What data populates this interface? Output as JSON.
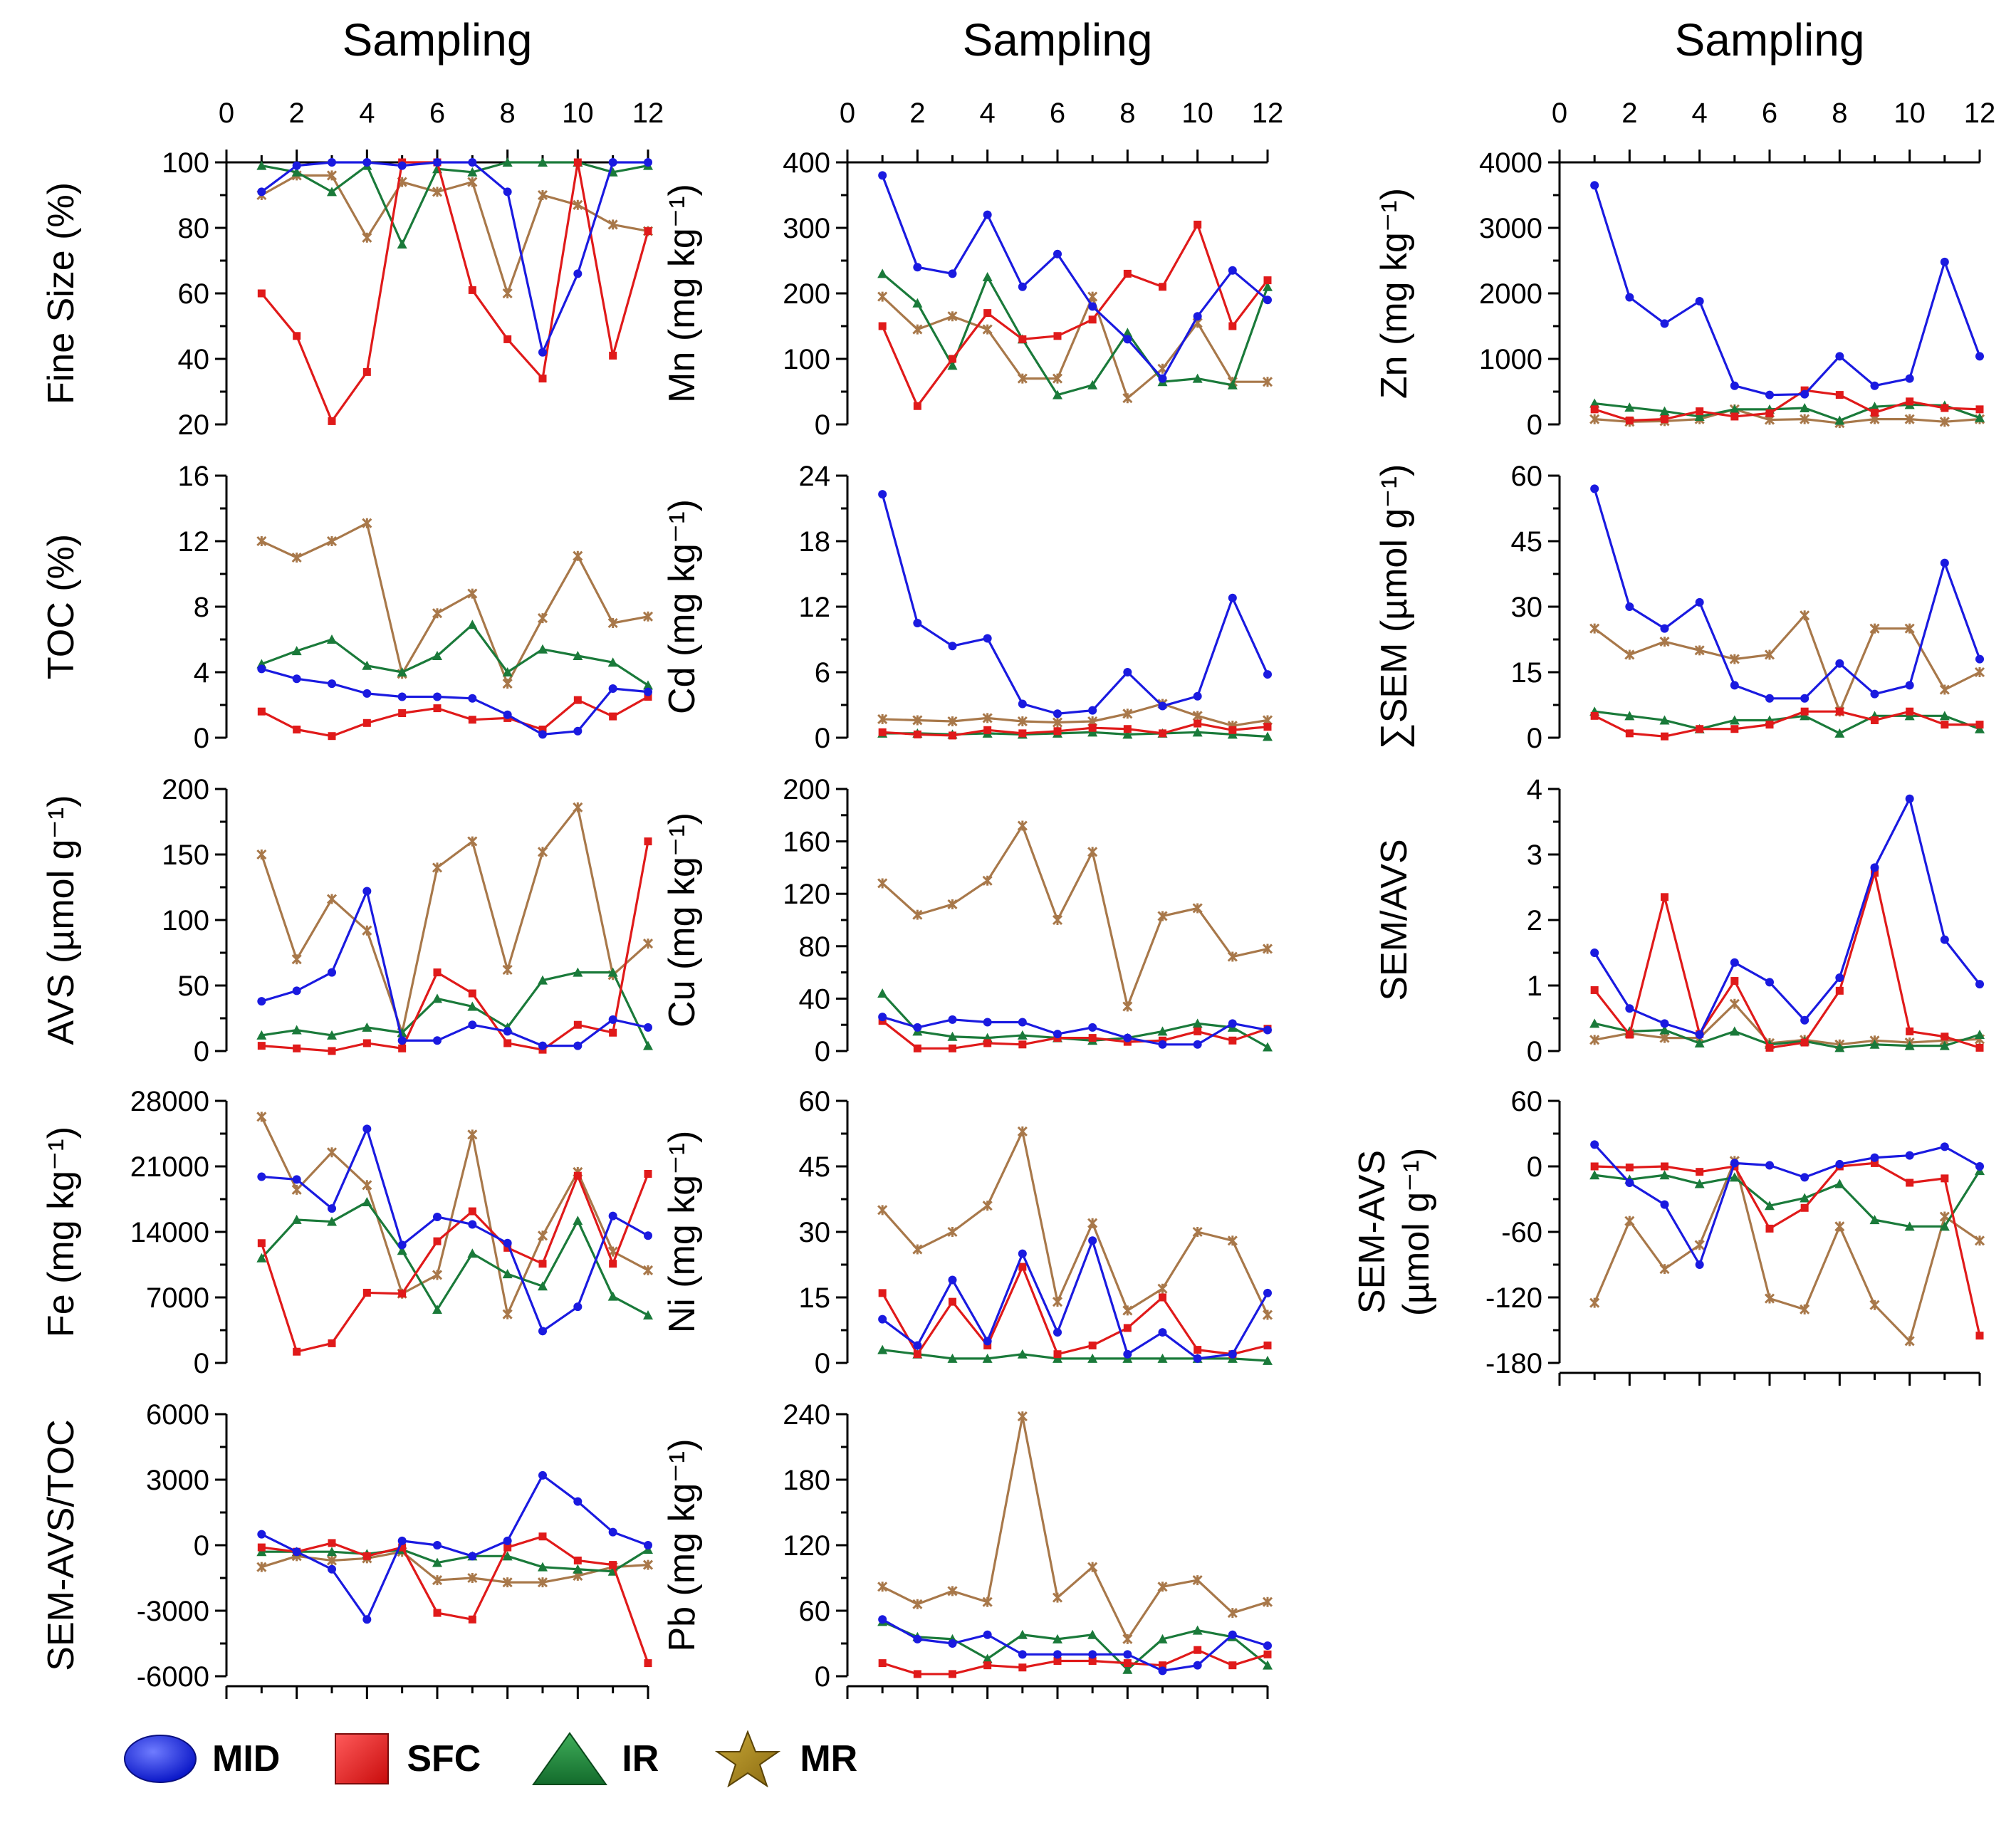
{
  "chart_data": {
    "type": "line",
    "x_axis_title": "Sampling",
    "x": [
      1,
      2,
      3,
      4,
      5,
      6,
      7,
      8,
      9,
      10,
      11,
      12
    ],
    "x_range": [
      0,
      12
    ],
    "x_ticks": [
      "0",
      "2",
      "4",
      "6",
      "8",
      "10",
      "12"
    ],
    "series_meta": [
      {
        "name": "MID",
        "color": "#1a1ae0"
      },
      {
        "name": "SFC",
        "color": "#e01a1a"
      },
      {
        "name": "IR",
        "color": "#1a7a3a"
      },
      {
        "name": "MR",
        "color": "#a8784a"
      }
    ],
    "panels": [
      {
        "id": "fine",
        "label_lines": [
          "Fine Size (%)"
        ],
        "ylim": [
          20,
          100
        ],
        "yticks": [
          "20",
          "40",
          "60",
          "80",
          "100"
        ],
        "tick_values": [
          20,
          40,
          60,
          80,
          100
        ],
        "series": {
          "MID": [
            91,
            99,
            100,
            100,
            99,
            100,
            100,
            91,
            42,
            66,
            100,
            100
          ],
          "SFC": [
            60,
            47,
            21,
            36,
            100,
            100,
            61,
            46,
            34,
            100,
            41,
            79
          ],
          "IR": [
            99,
            97,
            91,
            99,
            75,
            98,
            97,
            100,
            100,
            100,
            97,
            99
          ],
          "MR": [
            90,
            96,
            96,
            77,
            94,
            91,
            94,
            60,
            90,
            87,
            81,
            79
          ]
        }
      },
      {
        "id": "toc",
        "label_lines": [
          "TOC (%)"
        ],
        "ylim": [
          0,
          16
        ],
        "yticks": [
          "0",
          "4",
          "8",
          "12",
          "16"
        ],
        "tick_values": [
          0,
          4,
          8,
          12,
          16
        ],
        "series": {
          "MID": [
            4.2,
            3.6,
            3.3,
            2.7,
            2.5,
            2.5,
            2.4,
            1.4,
            0.2,
            0.4,
            3.0,
            2.8
          ],
          "SFC": [
            1.6,
            0.5,
            0.1,
            0.9,
            1.5,
            1.8,
            1.1,
            1.2,
            0.5,
            2.3,
            1.3,
            2.5
          ],
          "IR": [
            4.5,
            5.3,
            6.0,
            4.4,
            4.0,
            5.0,
            6.9,
            4.0,
            5.4,
            5.0,
            4.6,
            3.2
          ],
          "MR": [
            12.0,
            11.0,
            12.0,
            13.1,
            3.9,
            7.6,
            8.8,
            3.3,
            7.3,
            11.1,
            7.0,
            7.4
          ]
        }
      },
      {
        "id": "avs",
        "label_lines": [
          "AVS (µmol g⁻¹)"
        ],
        "ylim": [
          0,
          200
        ],
        "yticks": [
          "0",
          "50",
          "100",
          "150",
          "200"
        ],
        "tick_values": [
          0,
          50,
          100,
          150,
          200
        ],
        "series": {
          "MID": [
            38,
            46,
            60,
            122,
            8,
            8,
            20,
            15,
            4,
            4,
            24,
            18
          ],
          "SFC": [
            4,
            2,
            0,
            6,
            2,
            60,
            44,
            6,
            1,
            20,
            14,
            160
          ],
          "IR": [
            12,
            16,
            12,
            18,
            14,
            40,
            34,
            18,
            54,
            60,
            60,
            4
          ],
          "MR": [
            150,
            70,
            116,
            92,
            14,
            140,
            160,
            62,
            152,
            186,
            58,
            82
          ]
        }
      },
      {
        "id": "fe",
        "label_lines": [
          "Fe (mg kg⁻¹)"
        ],
        "ylim": [
          0,
          28000
        ],
        "yticks": [
          "0",
          "7000",
          "14000",
          "21000",
          "28000"
        ],
        "tick_values": [
          0,
          7000,
          14000,
          21000,
          28000
        ],
        "series": {
          "MID": [
            19900,
            19600,
            16500,
            25000,
            12600,
            15600,
            14800,
            12800,
            3400,
            6000,
            15700,
            13600
          ],
          "SFC": [
            12800,
            1200,
            2100,
            7500,
            7400,
            13000,
            16200,
            12300,
            10600,
            20000,
            10600,
            20200
          ],
          "IR": [
            11200,
            15300,
            15100,
            17200,
            12000,
            5700,
            11700,
            9500,
            8200,
            15200,
            7100,
            5100
          ],
          "MR": [
            26300,
            18500,
            22500,
            19000,
            7400,
            9400,
            24400,
            5200,
            13600,
            20400,
            11900,
            9900
          ]
        }
      },
      {
        "id": "semavstoc",
        "label_lines": [
          "SEM-AVS/TOC"
        ],
        "ylim": [
          -6000,
          6000
        ],
        "yticks": [
          "-6000",
          "-3000",
          "0",
          "3000",
          "6000"
        ],
        "tick_values": [
          -6000,
          -3000,
          0,
          3000,
          6000
        ],
        "series": {
          "MID": [
            500,
            -300,
            -1100,
            -3400,
            200,
            0,
            -500,
            200,
            3200,
            2000,
            600,
            0
          ],
          "SFC": [
            -100,
            -300,
            100,
            -500,
            -100,
            -3100,
            -3400,
            -100,
            400,
            -700,
            -900,
            -5400
          ],
          "IR": [
            -300,
            -300,
            -300,
            -400,
            -200,
            -800,
            -500,
            -500,
            -1000,
            -1100,
            -1200,
            -200
          ],
          "MR": [
            -1000,
            -500,
            -700,
            -600,
            -300,
            -1600,
            -1500,
            -1700,
            -1700,
            -1400,
            -1000,
            -900
          ]
        }
      },
      {
        "id": "mn",
        "label_lines": [
          "Mn (mg kg⁻¹)"
        ],
        "ylim": [
          0,
          400
        ],
        "yticks": [
          "0",
          "100",
          "200",
          "300",
          "400"
        ],
        "tick_values": [
          0,
          100,
          200,
          300,
          400
        ],
        "series": {
          "MID": [
            380,
            240,
            230,
            320,
            210,
            260,
            180,
            130,
            70,
            165,
            235,
            190
          ],
          "SFC": [
            150,
            28,
            100,
            170,
            130,
            135,
            160,
            230,
            210,
            305,
            150,
            220
          ],
          "IR": [
            230,
            185,
            90,
            225,
            130,
            45,
            60,
            140,
            65,
            70,
            60,
            210
          ],
          "MR": [
            195,
            145,
            165,
            145,
            70,
            70,
            195,
            40,
            85,
            155,
            65,
            65
          ]
        }
      },
      {
        "id": "cd",
        "label_lines": [
          "Cd (mg kg⁻¹)"
        ],
        "ylim": [
          0,
          24
        ],
        "yticks": [
          "0",
          "6",
          "12",
          "18",
          "24"
        ],
        "tick_values": [
          0,
          6,
          12,
          18,
          24
        ],
        "series": {
          "MID": [
            22.3,
            10.5,
            8.4,
            9.1,
            3.1,
            2.2,
            2.5,
            6.0,
            2.9,
            3.8,
            12.8,
            5.8
          ],
          "SFC": [
            0.5,
            0.3,
            0.2,
            0.7,
            0.4,
            0.6,
            0.9,
            0.8,
            0.4,
            1.3,
            0.7,
            1.0
          ],
          "IR": [
            0.4,
            0.4,
            0.3,
            0.4,
            0.3,
            0.4,
            0.5,
            0.3,
            0.4,
            0.5,
            0.3,
            0.1
          ],
          "MR": [
            1.7,
            1.6,
            1.5,
            1.8,
            1.5,
            1.4,
            1.5,
            2.2,
            3.1,
            2.0,
            1.1,
            1.6
          ]
        }
      },
      {
        "id": "cu",
        "label_lines": [
          "Cu (mg kg⁻¹)"
        ],
        "ylim": [
          0,
          200
        ],
        "yticks": [
          "0",
          "40",
          "80",
          "120",
          "160",
          "200"
        ],
        "tick_values": [
          0,
          40,
          80,
          120,
          160,
          200
        ],
        "series": {
          "MID": [
            26,
            18,
            24,
            22,
            22,
            13,
            18,
            10,
            5,
            5,
            21,
            16
          ],
          "SFC": [
            23,
            2,
            2,
            6,
            5,
            10,
            10,
            7,
            8,
            15,
            8,
            17
          ],
          "IR": [
            44,
            15,
            11,
            10,
            12,
            10,
            8,
            10,
            15,
            21,
            18,
            3
          ],
          "MR": [
            128,
            104,
            112,
            130,
            172,
            100,
            152,
            34,
            103,
            109,
            72,
            78
          ]
        }
      },
      {
        "id": "ni",
        "label_lines": [
          "Ni (mg kg⁻¹)"
        ],
        "ylim": [
          0,
          60
        ],
        "yticks": [
          "0",
          "15",
          "30",
          "45",
          "60"
        ],
        "tick_values": [
          0,
          15,
          30,
          45,
          60
        ],
        "series": {
          "MID": [
            10,
            4,
            19,
            5,
            25,
            7,
            28,
            2,
            7,
            1,
            2,
            16
          ],
          "SFC": [
            16,
            2,
            14,
            4,
            22,
            2,
            4,
            8,
            15,
            3,
            2,
            4
          ],
          "IR": [
            3,
            2,
            1,
            1,
            2,
            1,
            1,
            1,
            1,
            1,
            1,
            0.5
          ],
          "MR": [
            35,
            26,
            30,
            36,
            53,
            14,
            32,
            12,
            17,
            30,
            28,
            11
          ]
        }
      },
      {
        "id": "pb",
        "label_lines": [
          "Pb (mg kg⁻¹)"
        ],
        "ylim": [
          0,
          240
        ],
        "yticks": [
          "0",
          "60",
          "120",
          "180",
          "240"
        ],
        "tick_values": [
          0,
          60,
          120,
          180,
          240
        ],
        "series": {
          "MID": [
            52,
            34,
            30,
            38,
            20,
            20,
            20,
            20,
            5,
            10,
            38,
            28
          ],
          "SFC": [
            12,
            2,
            2,
            10,
            8,
            14,
            14,
            12,
            10,
            24,
            10,
            20
          ],
          "IR": [
            50,
            36,
            34,
            16,
            38,
            34,
            38,
            6,
            34,
            42,
            36,
            10
          ],
          "MR": [
            82,
            66,
            78,
            68,
            238,
            72,
            100,
            34,
            82,
            88,
            58,
            68
          ]
        }
      },
      {
        "id": "zn",
        "label_lines": [
          "Zn (mg kg⁻¹)"
        ],
        "ylim": [
          0,
          4000
        ],
        "yticks": [
          "0",
          "1000",
          "2000",
          "3000",
          "4000"
        ],
        "tick_values": [
          0,
          1000,
          2000,
          3000,
          4000
        ],
        "series": {
          "MID": [
            3650,
            1940,
            1540,
            1880,
            590,
            450,
            460,
            1040,
            590,
            700,
            2480,
            1040
          ],
          "SFC": [
            230,
            60,
            80,
            200,
            120,
            170,
            520,
            450,
            180,
            350,
            250,
            230
          ],
          "IR": [
            320,
            260,
            200,
            120,
            230,
            230,
            250,
            60,
            270,
            300,
            290,
            100
          ],
          "MR": [
            80,
            40,
            50,
            80,
            230,
            70,
            80,
            20,
            80,
            80,
            40,
            80
          ]
        }
      },
      {
        "id": "sumsem",
        "label_lines": [
          "∑SEM (µmol g⁻¹)"
        ],
        "ylim": [
          0,
          60
        ],
        "yticks": [
          "0",
          "15",
          "30",
          "45",
          "60"
        ],
        "tick_values": [
          0,
          15,
          30,
          45,
          60
        ],
        "series": {
          "MID": [
            57,
            30,
            25,
            31,
            12,
            9,
            9,
            17,
            10,
            12,
            40,
            18
          ],
          "SFC": [
            5,
            1,
            0.3,
            2,
            2,
            3,
            6,
            6,
            4,
            6,
            3,
            3
          ],
          "IR": [
            6,
            5,
            4,
            2,
            4,
            4,
            5,
            1,
            5,
            5,
            5,
            2
          ],
          "MR": [
            25,
            19,
            22,
            20,
            18,
            19,
            28,
            6,
            25,
            25,
            11,
            15
          ]
        }
      },
      {
        "id": "semavs",
        "label_lines": [
          "SEM/AVS"
        ],
        "ylim": [
          0,
          4
        ],
        "yticks": [
          "0",
          "1",
          "2",
          "3",
          "4"
        ],
        "tick_values": [
          0,
          1,
          2,
          3,
          4
        ],
        "series": {
          "MID": [
            1.5,
            0.65,
            0.42,
            0.25,
            1.35,
            1.05,
            0.47,
            1.12,
            2.8,
            3.85,
            1.7,
            1.02
          ],
          "SFC": [
            0.93,
            0.25,
            2.35,
            0.26,
            1.07,
            0.05,
            0.13,
            0.92,
            2.72,
            0.3,
            0.22,
            0.05
          ],
          "IR": [
            0.42,
            0.3,
            0.32,
            0.12,
            0.3,
            0.1,
            0.15,
            0.05,
            0.1,
            0.08,
            0.08,
            0.25
          ],
          "MR": [
            0.17,
            0.27,
            0.2,
            0.2,
            0.72,
            0.12,
            0.17,
            0.1,
            0.16,
            0.13,
            0.16,
            0.18
          ]
        }
      },
      {
        "id": "semminusavs",
        "label_lines": [
          "SEM-AVS",
          "(µmol g⁻¹)"
        ],
        "ylim": [
          -180,
          60
        ],
        "yticks": [
          "-180",
          "-120",
          "-60",
          "0",
          "60"
        ],
        "tick_values": [
          -180,
          -120,
          -60,
          0,
          60
        ],
        "series": {
          "MID": [
            20,
            -15,
            -35,
            -90,
            3,
            1,
            -10,
            2,
            8,
            10,
            18,
            0
          ],
          "SFC": [
            0,
            -1,
            0,
            -5,
            0,
            -57,
            -38,
            0,
            3,
            -15,
            -11,
            -155
          ],
          "IR": [
            -8,
            -12,
            -8,
            -16,
            -10,
            -36,
            -29,
            -16,
            -49,
            -55,
            -55,
            -4
          ],
          "MR": [
            -125,
            -50,
            -94,
            -72,
            5,
            -121,
            -131,
            -55,
            -127,
            -160,
            -46,
            -68
          ]
        }
      }
    ]
  },
  "legend": {
    "items": [
      {
        "label": "MID",
        "icon": "circle-icon"
      },
      {
        "label": "SFC",
        "icon": "square-icon"
      },
      {
        "label": "IR",
        "icon": "triangle-icon"
      },
      {
        "label": "MR",
        "icon": "star-icon"
      }
    ]
  }
}
